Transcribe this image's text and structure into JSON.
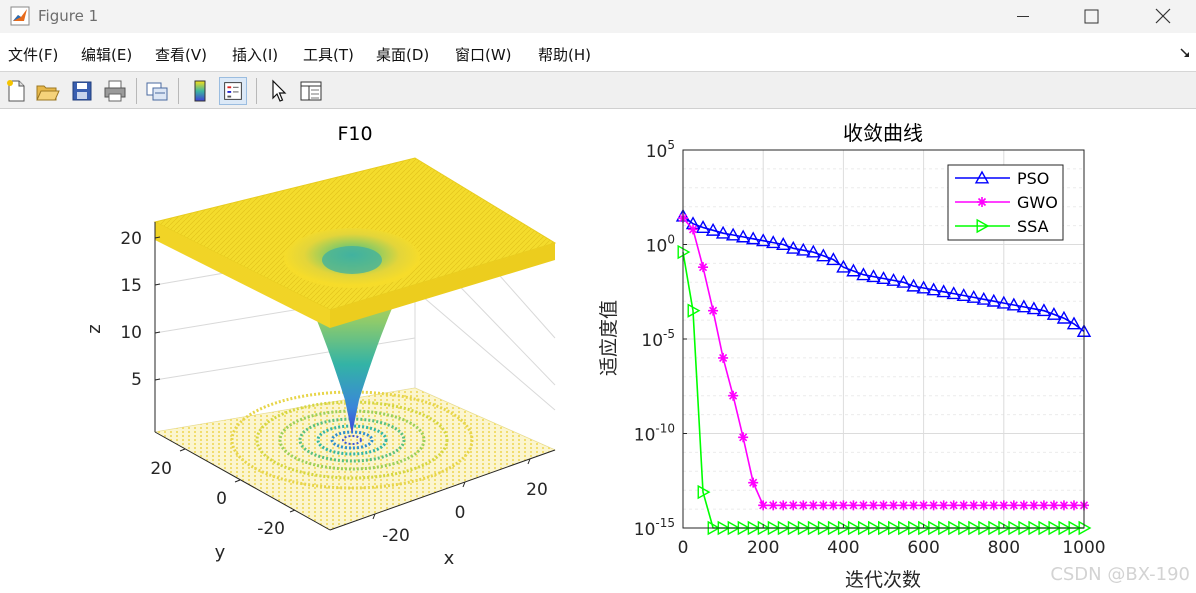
{
  "window": {
    "title": "Figure 1",
    "controls": {
      "minimize": "—",
      "maximize": "☐",
      "close": "✕"
    }
  },
  "menu": {
    "items": [
      "文件(F)",
      "编辑(E)",
      "查看(V)",
      "插入(I)",
      "工具(T)",
      "桌面(D)",
      "窗口(W)",
      "帮助(H)"
    ]
  },
  "toolbar": {
    "buttons": [
      "new-figure-icon",
      "open-file-icon",
      "save-icon",
      "print-icon",
      "link-plot-icon",
      "colorbar-icon",
      "legend-icon",
      "pointer-icon",
      "property-inspector-icon"
    ]
  },
  "surface_plot": {
    "title": "F10",
    "xlabel": "x",
    "ylabel": "y",
    "zlabel": "z",
    "z_ticks": [
      "5",
      "10",
      "15",
      "20"
    ],
    "x_ticks": [
      "-20",
      "0",
      "20"
    ],
    "y_ticks": [
      "-20",
      "0",
      "20"
    ],
    "colors": {
      "high": "#f9e017",
      "mid": "#3bb5a0",
      "low": "#3e3fd6"
    }
  },
  "chart_data": {
    "type": "line",
    "title": "收敛曲线",
    "xlabel": "迭代次数",
    "ylabel": "适应度值",
    "xlim": [
      0,
      1000
    ],
    "ylim_log10": [
      -15,
      5
    ],
    "y_scale": "log",
    "grid": true,
    "legend_placement": "top-right",
    "x_tick_labels": [
      "0",
      "200",
      "400",
      "600",
      "800",
      "1000"
    ],
    "y_tick_labels": [
      {
        "base": "10",
        "exp": "5",
        "log10": 5
      },
      {
        "base": "10",
        "exp": "0",
        "log10": 0
      },
      {
        "base": "10",
        "exp": "-5",
        "log10": -5
      },
      {
        "base": "10",
        "exp": "-10",
        "log10": -10
      },
      {
        "base": "10",
        "exp": "-15",
        "log10": -15
      }
    ],
    "series": [
      {
        "name": "PSO",
        "color": "#0000ff",
        "marker": "triangle-up",
        "x": [
          0,
          25,
          50,
          75,
          100,
          125,
          150,
          175,
          200,
          225,
          250,
          275,
          300,
          325,
          350,
          375,
          400,
          425,
          450,
          475,
          500,
          525,
          550,
          575,
          600,
          625,
          650,
          675,
          700,
          725,
          750,
          775,
          800,
          825,
          850,
          875,
          900,
          925,
          950,
          975,
          1000
        ],
        "log10_y": [
          1.5,
          1.1,
          0.9,
          0.75,
          0.6,
          0.5,
          0.4,
          0.3,
          0.2,
          0.1,
          0.0,
          -0.2,
          -0.3,
          -0.4,
          -0.6,
          -0.8,
          -1.2,
          -1.4,
          -1.6,
          -1.7,
          -1.8,
          -1.9,
          -2.0,
          -2.2,
          -2.3,
          -2.4,
          -2.5,
          -2.6,
          -2.7,
          -2.8,
          -2.9,
          -3.0,
          -3.1,
          -3.2,
          -3.3,
          -3.4,
          -3.5,
          -3.7,
          -3.9,
          -4.2,
          -4.6
        ]
      },
      {
        "name": "GWO",
        "color": "#ff00ff",
        "marker": "asterisk",
        "x": [
          0,
          25,
          50,
          75,
          100,
          125,
          150,
          175,
          200,
          225,
          250,
          275,
          300,
          325,
          350,
          375,
          400,
          425,
          450,
          475,
          500,
          525,
          550,
          575,
          600,
          625,
          650,
          675,
          700,
          725,
          750,
          775,
          800,
          825,
          850,
          875,
          900,
          925,
          950,
          975,
          1000
        ],
        "log10_y": [
          1.4,
          0.8,
          -1.2,
          -3.5,
          -6.0,
          -8.0,
          -10.2,
          -12.6,
          -13.8,
          -13.8,
          -13.8,
          -13.8,
          -13.8,
          -13.8,
          -13.8,
          -13.8,
          -13.8,
          -13.8,
          -13.8,
          -13.8,
          -13.8,
          -13.8,
          -13.8,
          -13.8,
          -13.8,
          -13.8,
          -13.8,
          -13.8,
          -13.8,
          -13.8,
          -13.8,
          -13.8,
          -13.8,
          -13.8,
          -13.8,
          -13.8,
          -13.8,
          -13.8,
          -13.8,
          -13.8,
          -13.8
        ]
      },
      {
        "name": "SSA",
        "color": "#00ff00",
        "marker": "triangle-right",
        "x": [
          0,
          25,
          50,
          75,
          100,
          125,
          150,
          175,
          200,
          225,
          250,
          275,
          300,
          325,
          350,
          375,
          400,
          425,
          450,
          475,
          500,
          525,
          550,
          575,
          600,
          625,
          650,
          675,
          700,
          725,
          750,
          775,
          800,
          825,
          850,
          875,
          900,
          925,
          950,
          975,
          1000
        ],
        "log10_y": [
          -0.4,
          -3.5,
          -13.1,
          -15,
          -15,
          -15,
          -15,
          -15,
          -15,
          -15,
          -15,
          -15,
          -15,
          -15,
          -15,
          -15,
          -15,
          -15,
          -15,
          -15,
          -15,
          -15,
          -15,
          -15,
          -15,
          -15,
          -15,
          -15,
          -15,
          -15,
          -15,
          -15,
          -15,
          -15,
          -15,
          -15,
          -15,
          -15,
          -15,
          -15,
          -15
        ]
      }
    ]
  },
  "watermark": "CSDN @BX-190"
}
